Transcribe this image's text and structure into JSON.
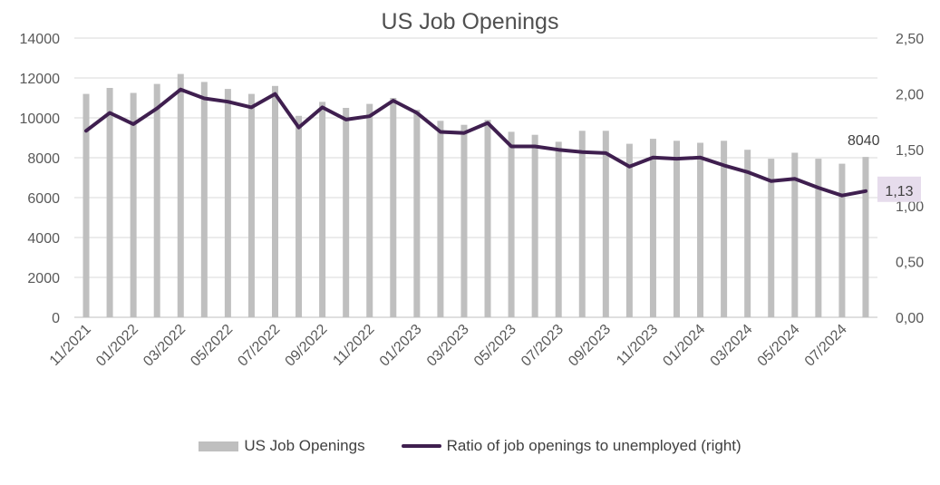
{
  "chart_data": {
    "type": "bar",
    "title": "US Job Openings",
    "categories": [
      "11/2021",
      "12/2021",
      "01/2022",
      "02/2022",
      "03/2022",
      "04/2022",
      "05/2022",
      "06/2022",
      "07/2022",
      "08/2022",
      "09/2022",
      "10/2022",
      "11/2022",
      "12/2022",
      "01/2023",
      "02/2023",
      "03/2023",
      "04/2023",
      "05/2023",
      "06/2023",
      "07/2023",
      "08/2023",
      "09/2023",
      "10/2023",
      "11/2023",
      "12/2023",
      "01/2024",
      "02/2024",
      "03/2024",
      "04/2024",
      "05/2024",
      "06/2024",
      "07/2024",
      "08/2024"
    ],
    "x_tick_labels": [
      "11/2021",
      "01/2022",
      "03/2022",
      "05/2022",
      "07/2022",
      "09/2022",
      "11/2022",
      "01/2023",
      "03/2023",
      "05/2023",
      "07/2023",
      "09/2023",
      "11/2023",
      "01/2024",
      "03/2024",
      "05/2024",
      "07/2024"
    ],
    "series": [
      {
        "name": "US Job Openings",
        "type": "bar",
        "axis": "left",
        "color": "#bfbfbf",
        "values": [
          11200,
          11500,
          11250,
          11700,
          12200,
          11800,
          11450,
          11200,
          11600,
          10100,
          10800,
          10500,
          10700,
          11000,
          10400,
          9850,
          9650,
          9900,
          9300,
          9150,
          8800,
          9350,
          9350,
          8700,
          8950,
          8850,
          8750,
          8850,
          8400,
          7950,
          8250,
          7950,
          7700,
          8040
        ]
      },
      {
        "name": "Ratio of job openings to unemployed (right)",
        "type": "line",
        "axis": "right",
        "color": "#3f1f4f",
        "values": [
          1.67,
          1.83,
          1.73,
          1.87,
          2.04,
          1.96,
          1.93,
          1.88,
          2.0,
          1.7,
          1.88,
          1.77,
          1.8,
          1.94,
          1.83,
          1.66,
          1.65,
          1.74,
          1.53,
          1.53,
          1.5,
          1.48,
          1.47,
          1.35,
          1.43,
          1.42,
          1.43,
          1.36,
          1.3,
          1.22,
          1.24,
          1.16,
          1.09,
          1.13
        ]
      }
    ],
    "y_left": {
      "min": 0,
      "max": 14000,
      "ticks": [
        "0",
        "2000",
        "4000",
        "6000",
        "8000",
        "10000",
        "12000",
        "14000"
      ]
    },
    "y_right": {
      "min": 0,
      "max": 2.5,
      "ticks": [
        "0,00",
        "0,50",
        "1,00",
        "1,50",
        "2,00",
        "2,50"
      ]
    },
    "annotations": {
      "last_bar_label": "8040",
      "last_ratio_label": "1,13"
    },
    "gridlines": true,
    "legend_position": "bottom"
  }
}
